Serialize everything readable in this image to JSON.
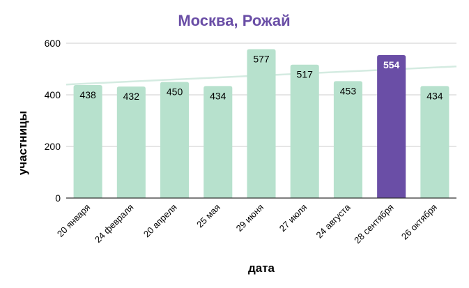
{
  "chart_data": {
    "type": "bar",
    "title": "Москва, Рожай",
    "xlabel": "дата",
    "ylabel": "участницы",
    "ylim": [
      0,
      600
    ],
    "yticks": [
      0,
      200,
      400,
      600
    ],
    "categories": [
      "20 января",
      "24 февраля",
      "20 апреля",
      "25 мая",
      "29 июня",
      "27 июля",
      "24 августа",
      "28 сентября",
      "26 октября"
    ],
    "values": [
      438,
      432,
      450,
      434,
      577,
      517,
      453,
      554,
      434
    ],
    "highlight_index": 7,
    "trendline": {
      "type": "linear",
      "start": 440,
      "end": 510
    },
    "grid": true,
    "legend": "none"
  },
  "colors": {
    "title": "#6a4ea6",
    "bar": "#b7e1cd",
    "bar_highlight": "#6a4ea6",
    "trendline": "#d4ebe1",
    "grid": "#cccccc",
    "axis": "#333333",
    "label_dark": "#000000",
    "label_light": "#ffffff"
  }
}
